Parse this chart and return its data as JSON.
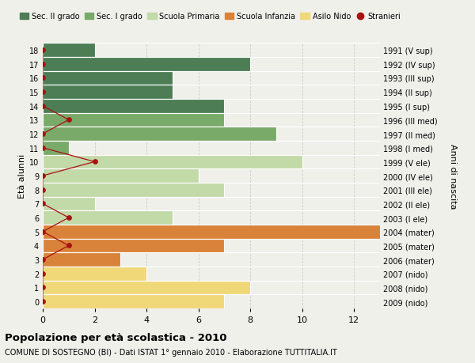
{
  "ages": [
    18,
    17,
    16,
    15,
    14,
    13,
    12,
    11,
    10,
    9,
    8,
    7,
    6,
    5,
    4,
    3,
    2,
    1,
    0
  ],
  "right_labels": [
    "1991 (V sup)",
    "1992 (IV sup)",
    "1993 (III sup)",
    "1994 (II sup)",
    "1995 (I sup)",
    "1996 (III med)",
    "1997 (II med)",
    "1998 (I med)",
    "1999 (V ele)",
    "2000 (IV ele)",
    "2001 (III ele)",
    "2002 (II ele)",
    "2003 (I ele)",
    "2004 (mater)",
    "2005 (mater)",
    "2006 (mater)",
    "2007 (nido)",
    "2008 (nido)",
    "2009 (nido)"
  ],
  "bar_values": [
    2,
    8,
    5,
    5,
    7,
    7,
    9,
    1,
    10,
    6,
    7,
    2,
    5,
    13,
    7,
    3,
    4,
    8,
    7
  ],
  "bar_colors": [
    "#4d7d55",
    "#4d7d55",
    "#4d7d55",
    "#4d7d55",
    "#4d7d55",
    "#7aaa6a",
    "#7aaa6a",
    "#7aaa6a",
    "#c2d9a8",
    "#c2d9a8",
    "#c2d9a8",
    "#c2d9a8",
    "#c2d9a8",
    "#d9833a",
    "#d9833a",
    "#d9833a",
    "#f0d878",
    "#f0d878",
    "#f0d878"
  ],
  "stranieri_values": [
    0,
    0,
    0,
    0,
    0,
    1,
    0,
    0,
    2,
    0,
    0,
    0,
    1,
    0,
    1,
    0,
    0,
    0,
    0
  ],
  "stranieri_color": "#aa1111",
  "title_bold": "Popolazione per età scolastica - 2010",
  "subtitle": "COMUNE DI SOSTEGNO (BI) - Dati ISTAT 1° gennaio 2010 - Elaborazione TUTTITALIA.IT",
  "ylabel_left": "Età alunni",
  "ylabel_right": "Anni di nascita",
  "xlim": [
    0,
    13
  ],
  "xticks": [
    0,
    2,
    4,
    6,
    8,
    10,
    12
  ],
  "background_color": "#f0f0eb",
  "grid_color": "#cccccc",
  "bar_height": 1.0,
  "legend_items": [
    {
      "label": "Sec. II grado",
      "color": "#4d7d55",
      "type": "patch"
    },
    {
      "label": "Sec. I grado",
      "color": "#7aaa6a",
      "type": "patch"
    },
    {
      "label": "Scuola Primaria",
      "color": "#c2d9a8",
      "type": "patch"
    },
    {
      "label": "Scuola Infanzia",
      "color": "#d9833a",
      "type": "patch"
    },
    {
      "label": "Asilo Nido",
      "color": "#f0d878",
      "type": "patch"
    },
    {
      "label": "Stranieri",
      "color": "#aa1111",
      "type": "circle"
    }
  ]
}
